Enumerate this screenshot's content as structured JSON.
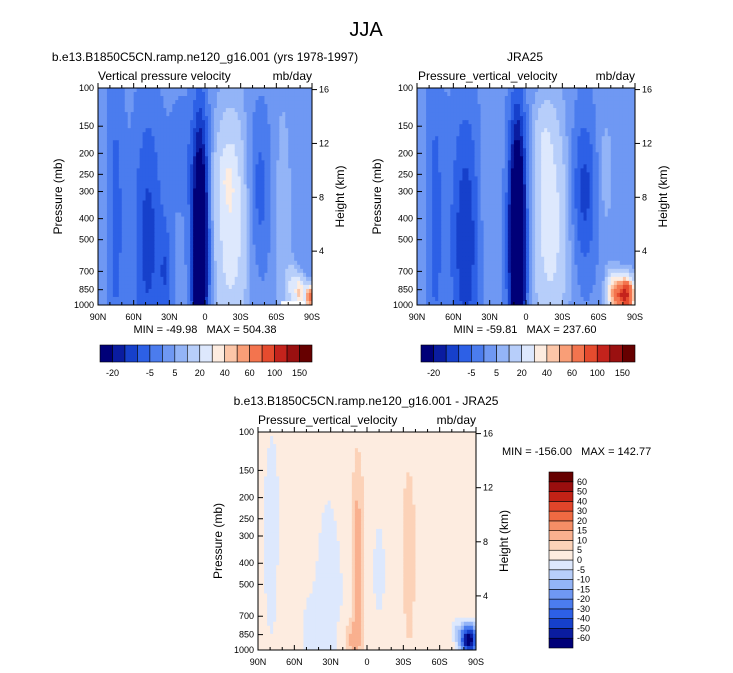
{
  "chart_data": {
    "type": "heatmap",
    "title": "JJA",
    "panels": [
      {
        "id": "model",
        "title": "b.e13.B1850C5CN.ramp.ne120_g16.001 (yrs 1978-1997)",
        "left_label": "Vertical pressure velocity",
        "right_label": "mb/day",
        "ylabel": "Pressure (mb)",
        "y2label": "Height (km)",
        "stats": "MIN = -49.98   MAX = 504.38",
        "colorbar": "full",
        "xticks": [
          "90N",
          "60N",
          "30N",
          "0",
          "30S",
          "60S",
          "90S"
        ],
        "xvals": [
          90,
          60,
          30,
          0,
          -30,
          -60,
          -90
        ],
        "yticks": [
          "100",
          "150",
          "200",
          "250",
          "300",
          "400",
          "500",
          "700",
          "850",
          "1000"
        ],
        "yvals": [
          100,
          150,
          200,
          250,
          300,
          400,
          500,
          700,
          850,
          1000
        ],
        "heights": [
          "16",
          "12",
          "8",
          "4"
        ],
        "height_vals": [
          16,
          12,
          8,
          4
        ],
        "fields": [
          {
            "lat": 4,
            "p": 500,
            "sx": 5,
            "sp": 0.9,
            "a": -40
          },
          {
            "lat": 6,
            "p": 780,
            "sx": 3,
            "sp": 0.2,
            "a": -12
          },
          {
            "lat": -22,
            "p": 420,
            "sx": 10,
            "sp": 0.8,
            "a": 26
          },
          {
            "lat": -18,
            "p": 250,
            "sx": 6,
            "sp": 0.25,
            "a": 10
          },
          {
            "lat": 48,
            "p": 500,
            "sx": 9,
            "sp": 1.0,
            "a": -14
          },
          {
            "lat": 75,
            "p": 400,
            "sx": 5,
            "sp": 1.2,
            "a": -9
          },
          {
            "lat": 20,
            "p": 200,
            "sx": 7,
            "sp": 0.4,
            "a": -6
          },
          {
            "lat": 33,
            "p": 720,
            "sx": 4,
            "sp": 0.4,
            "a": -9
          },
          {
            "lat": -45,
            "p": 300,
            "sx": 8,
            "sp": 0.6,
            "a": -10
          },
          {
            "lat": -65,
            "p": 400,
            "sx": 6,
            "sp": 1.0,
            "a": 6
          },
          {
            "lat": -80,
            "p": 880,
            "sx": 3,
            "sp": 0.12,
            "a": 40
          },
          {
            "lat": -88,
            "p": 920,
            "sx": 2,
            "sp": 0.08,
            "a": 80
          },
          {
            "lat": -73,
            "p": 820,
            "sx": 3,
            "sp": 0.15,
            "a": 20
          }
        ],
        "missing": {
          "lat_from": -64,
          "lat_to": -84,
          "p_from": 960,
          "p_to": 1000
        }
      },
      {
        "id": "jra25",
        "title": "JRA25",
        "left_label": "Pressure_vertical_velocity",
        "right_label": "mb/day",
        "ylabel": "Pressure (mb)",
        "y2label": "Height (km)",
        "stats": "MIN = -59.81   MAX = 237.60",
        "colorbar": "full",
        "xticks": [
          "90N",
          "60N",
          "30N",
          "0",
          "30S",
          "60S",
          "90S"
        ],
        "xvals": [
          90,
          60,
          30,
          0,
          -30,
          -60,
          -90
        ],
        "yticks": [
          "100",
          "150",
          "200",
          "250",
          "300",
          "400",
          "500",
          "700",
          "850",
          "1000"
        ],
        "yvals": [
          100,
          150,
          200,
          250,
          300,
          400,
          500,
          700,
          850,
          1000
        ],
        "heights": [
          "16",
          "12",
          "8",
          "4"
        ],
        "height_vals": [
          16,
          12,
          8,
          4
        ],
        "fields": [
          {
            "lat": 7,
            "p": 500,
            "sx": 5,
            "sp": 0.9,
            "a": -46
          },
          {
            "lat": -20,
            "p": 420,
            "sx": 10,
            "sp": 0.8,
            "a": 24
          },
          {
            "lat": -15,
            "p": 180,
            "sx": 5,
            "sp": 0.25,
            "a": 10
          },
          {
            "lat": 50,
            "p": 500,
            "sx": 9,
            "sp": 1.0,
            "a": -16
          },
          {
            "lat": 75,
            "p": 400,
            "sx": 5,
            "sp": 1.2,
            "a": -9
          },
          {
            "lat": 33,
            "p": 300,
            "sx": 5,
            "sp": 0.6,
            "a": 4
          },
          {
            "lat": -48,
            "p": 300,
            "sx": 8,
            "sp": 0.6,
            "a": -14
          },
          {
            "lat": -65,
            "p": 250,
            "sx": 5,
            "sp": 0.5,
            "a": 6
          },
          {
            "lat": -82,
            "p": 900,
            "sx": 5,
            "sp": 0.12,
            "a": 110
          },
          {
            "lat": -72,
            "p": 880,
            "sx": 4,
            "sp": 0.15,
            "a": 40
          }
        ]
      },
      {
        "id": "diff",
        "title": "b.e13.B1850C5CN.ramp.ne120_g16.001 - JRA25",
        "left_label": "Pressure_vertical_velocity",
        "right_label": "mb/day",
        "ylabel": "Pressure (mb)",
        "y2label": "Height (km)",
        "stats": "MIN = -156.00   MAX = 142.77",
        "colorbar": "diff",
        "xticks": [
          "90N",
          "60N",
          "30N",
          "0",
          "30S",
          "60S",
          "90S"
        ],
        "xvals": [
          90,
          60,
          30,
          0,
          -30,
          -60,
          -90
        ],
        "yticks": [
          "100",
          "150",
          "200",
          "250",
          "300",
          "400",
          "500",
          "700",
          "850",
          "1000"
        ],
        "yvals": [
          100,
          150,
          200,
          250,
          300,
          400,
          500,
          700,
          850,
          1000
        ],
        "heights": [
          "16",
          "12",
          "8",
          "4"
        ],
        "height_vals": [
          16,
          12,
          8,
          4
        ],
        "fields": [
          {
            "lat": 8,
            "p": 420,
            "sx": 3,
            "sp": 0.7,
            "a": 12
          },
          {
            "lat": 13,
            "p": 900,
            "sx": 5,
            "sp": 0.15,
            "a": 9
          },
          {
            "lat": 30,
            "p": 500,
            "sx": 12,
            "sp": 1.2,
            "a": -3
          },
          {
            "lat": -10,
            "p": 350,
            "sx": 6,
            "sp": 0.6,
            "a": -4
          },
          {
            "lat": -35,
            "p": 400,
            "sx": 4,
            "sp": 0.7,
            "a": 6
          },
          {
            "lat": -8,
            "p": 200,
            "sx": 20,
            "sp": 0.6,
            "a": 2
          },
          {
            "lat": -72,
            "p": 450,
            "sx": 8,
            "sp": 1.0,
            "a": 3
          },
          {
            "lat": 78,
            "p": 300,
            "sx": 6,
            "sp": 0.9,
            "a": -4
          },
          {
            "lat": 65,
            "p": 500,
            "sx": 6,
            "sp": 0.9,
            "a": 3
          },
          {
            "lat": 55,
            "p": 800,
            "sx": 10,
            "sp": 0.4,
            "a": -2
          },
          {
            "lat": -84,
            "p": 900,
            "sx": 4,
            "sp": 0.1,
            "a": -75
          },
          {
            "lat": -74,
            "p": 820,
            "sx": 3,
            "sp": 0.1,
            "a": -12
          },
          {
            "lat": -50,
            "p": 500,
            "sx": 6,
            "sp": 0.8,
            "a": -2
          }
        ]
      }
    ],
    "colorbars": {
      "full": {
        "orientation": "horizontal",
        "levels": [
          -20,
          -15,
          -10,
          -5,
          0,
          5,
          10,
          20,
          30,
          40,
          50,
          60,
          80,
          100,
          125,
          150
        ],
        "labels": [
          "-20",
          "-5",
          "5",
          "20",
          "40",
          "60",
          "100",
          "150"
        ],
        "colors": [
          "#000078",
          "#0a1ca0",
          "#1640cb",
          "#2d60e6",
          "#4b7cee",
          "#6f98f3",
          "#93b4f7",
          "#b7cefa",
          "#dde8fd",
          "#fdece0",
          "#fcc6a8",
          "#f99e77",
          "#f3744e",
          "#e54b2e",
          "#c4231c",
          "#9a1010",
          "#660000"
        ]
      },
      "diff": {
        "orientation": "vertical",
        "levels": [
          -60,
          -50,
          -40,
          -30,
          -20,
          -15,
          -10,
          -5,
          0,
          5,
          10,
          15,
          20,
          30,
          40,
          50,
          60
        ],
        "labels": [
          "-60",
          "-50",
          "-40",
          "-30",
          "-20",
          "-15",
          "-10",
          "-5",
          "0",
          "5",
          "10",
          "15",
          "20",
          "30",
          "40",
          "50",
          "60"
        ],
        "colors": [
          "#000078",
          "#0a1ca0",
          "#1640cb",
          "#2d60e6",
          "#4b7cee",
          "#6f98f3",
          "#93b4f7",
          "#b7cefa",
          "#dde8fd",
          "#fdece0",
          "#fcd2b8",
          "#f9b08f",
          "#f58e66",
          "#ef6a42",
          "#e2452a",
          "#c22216",
          "#9a0e0e",
          "#660000"
        ]
      }
    }
  }
}
